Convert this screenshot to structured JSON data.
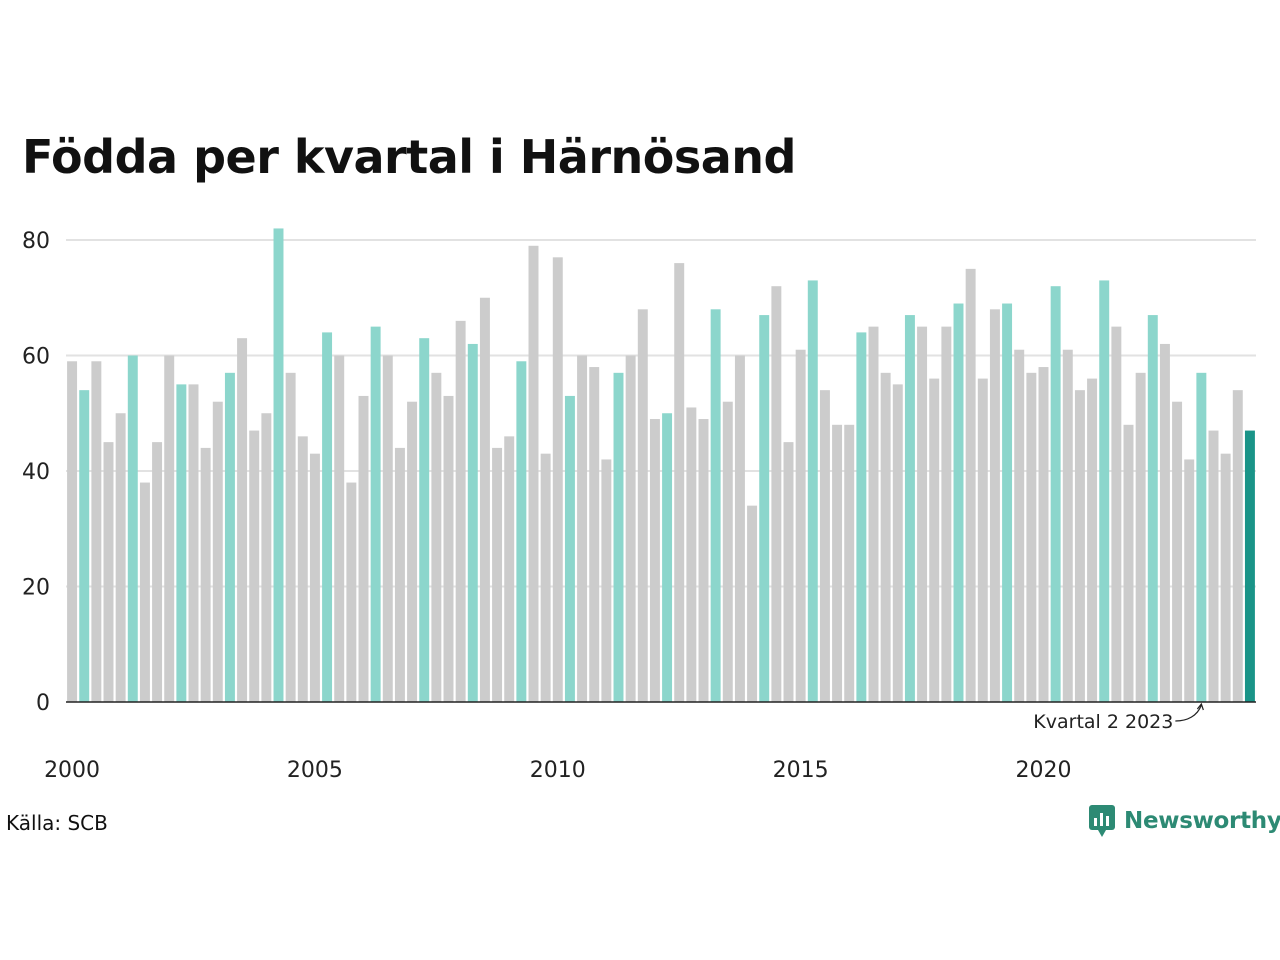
{
  "title": "Födda per kvartal i Härnösand",
  "source": "Källa: SCB",
  "brand": "Newsworthy",
  "colors": {
    "bar_default": "#cccccc",
    "bar_q2": "#8cd6cc",
    "bar_latest": "#1a9488",
    "grid": "#e2e2e2",
    "axis": "#222222",
    "brand": "#2d8a74"
  },
  "chart_data": {
    "type": "bar",
    "title": "Födda per kvartal i Härnösand",
    "xlabel": "",
    "ylabel": "",
    "ylim": [
      0,
      85
    ],
    "yticks": [
      0,
      20,
      40,
      60,
      80
    ],
    "xticks": [
      {
        "label": "2000",
        "index": 0
      },
      {
        "label": "2005",
        "index": 20
      },
      {
        "label": "2010",
        "index": 40
      },
      {
        "label": "2015",
        "index": 60
      },
      {
        "label": "2020",
        "index": 80
      }
    ],
    "grid": true,
    "start": "2000 Q1",
    "highlight_quarter": 2,
    "annotation": {
      "text": "Kvartal 2 2023",
      "index": 93
    },
    "values": [
      59,
      54,
      59,
      45,
      50,
      60,
      38,
      45,
      60,
      55,
      55,
      44,
      52,
      57,
      63,
      47,
      50,
      82,
      57,
      46,
      43,
      64,
      60,
      38,
      53,
      65,
      60,
      44,
      52,
      63,
      57,
      53,
      66,
      62,
      70,
      44,
      46,
      59,
      79,
      43,
      77,
      53,
      60,
      58,
      42,
      57,
      60,
      68,
      49,
      50,
      76,
      51,
      49,
      68,
      52,
      60,
      34,
      67,
      72,
      45,
      61,
      73,
      54,
      48,
      48,
      64,
      65,
      57,
      55,
      67,
      65,
      56,
      65,
      69,
      75,
      56,
      68,
      69,
      61,
      57,
      58,
      72,
      61,
      54,
      56,
      73,
      65,
      48,
      57,
      67,
      62,
      52,
      42,
      57,
      47,
      43,
      54,
      47
    ]
  }
}
